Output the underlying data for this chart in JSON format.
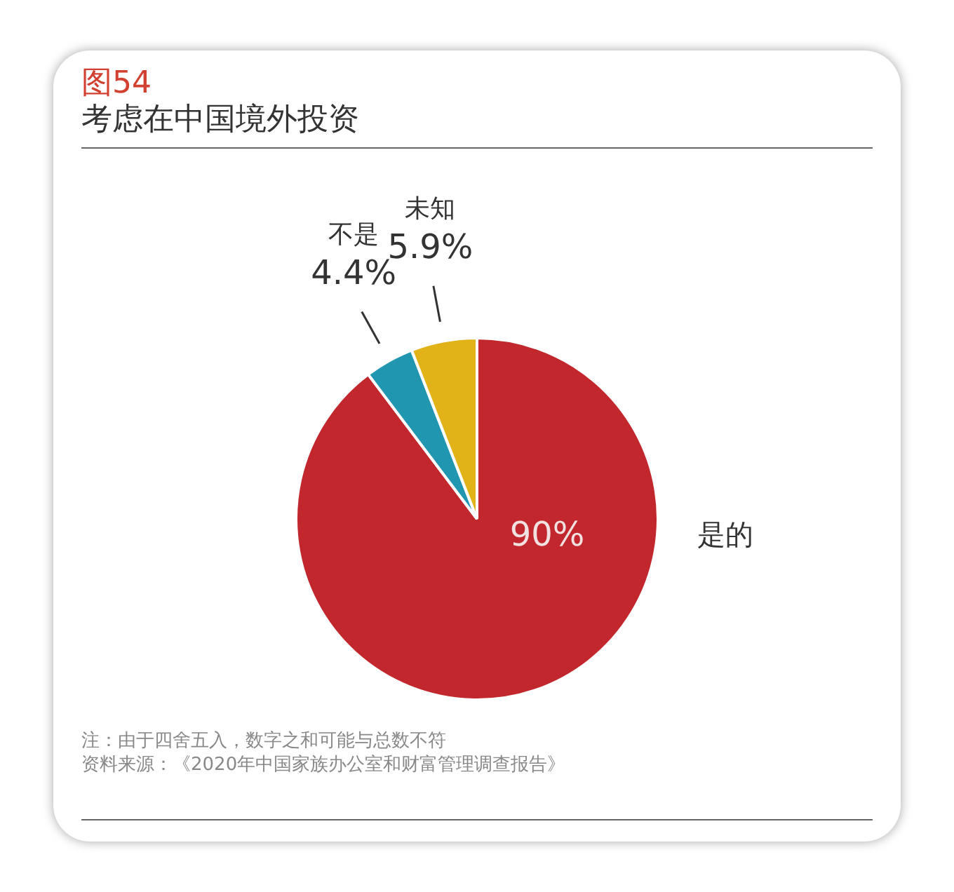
{
  "chart_data": {
    "type": "pie",
    "title": "图54",
    "subtitle": "考虑在中国境外投资",
    "categories": [
      "是的",
      "不是",
      "未知"
    ],
    "values": [
      90,
      4.4,
      5.9
    ],
    "value_labels": [
      "90%",
      "4.4%",
      "5.9%"
    ],
    "colors": [
      "#c1272d",
      "#2196b0",
      "#e2b319"
    ],
    "legend": false,
    "annotations": [
      "注：由于四舍五入，数字之和可能与总数不符",
      "资料来源：《2020年中国家族办公室和财富管理调查报告》"
    ]
  }
}
